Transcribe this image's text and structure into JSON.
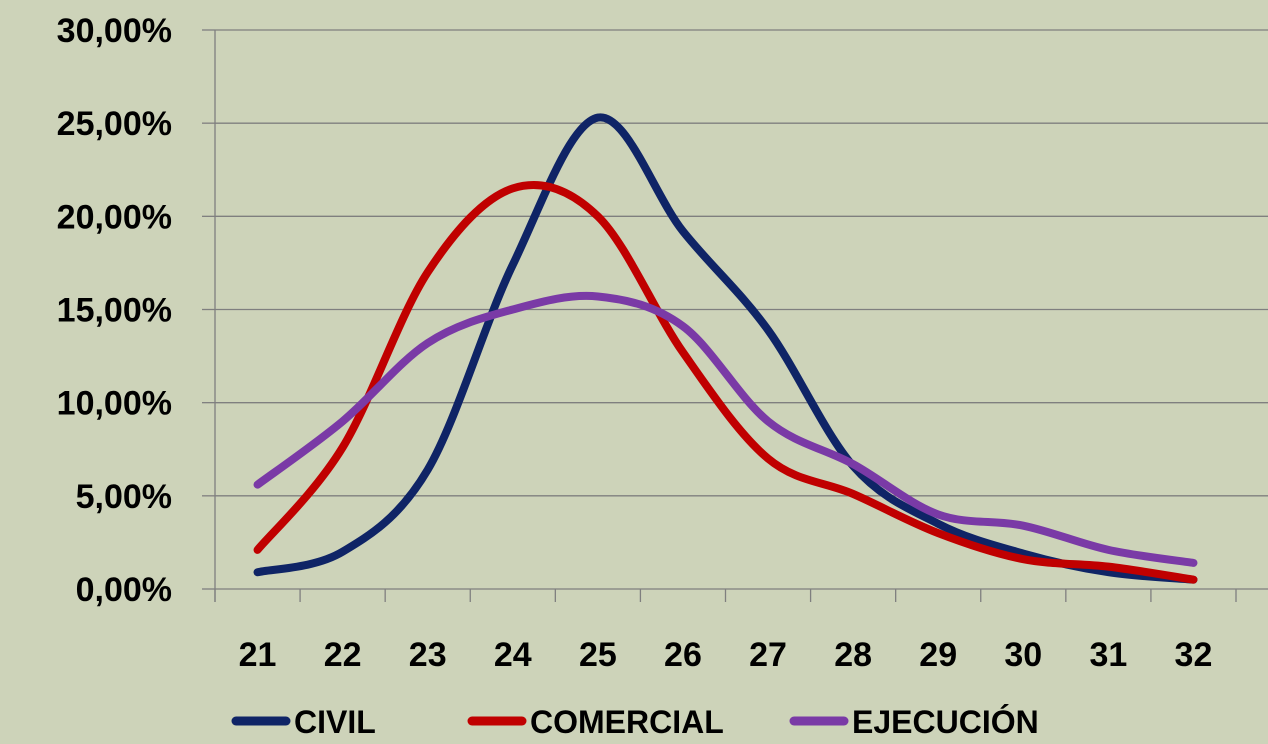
{
  "chart_data": {
    "type": "line",
    "title": "",
    "xlabel": "",
    "ylabel": "",
    "x": [
      21,
      22,
      23,
      24,
      25,
      26,
      27,
      28,
      29,
      30,
      31,
      32
    ],
    "ylim": [
      0,
      30
    ],
    "yticks": [
      0,
      5,
      10,
      15,
      20,
      25,
      30
    ],
    "ytick_labels": [
      "0,00%",
      "5,00%",
      "10,00%",
      "15,00%",
      "20,00%",
      "25,00%",
      "30,00%"
    ],
    "grid": "horizontal",
    "smooth": true,
    "legend_position": "bottom",
    "series": [
      {
        "name": "CIVIL",
        "color": "#0f2466",
        "values": [
          0.9,
          2.0,
          6.4,
          17.4,
          25.3,
          19.2,
          13.9,
          6.6,
          3.5,
          1.9,
          0.9,
          0.5
        ]
      },
      {
        "name": "COMERCIAL",
        "color": "#c00000",
        "values": [
          2.1,
          7.6,
          17.0,
          21.5,
          20.0,
          12.7,
          7.0,
          5.1,
          3.0,
          1.6,
          1.2,
          0.5
        ]
      },
      {
        "name": "EJECUCIÓN",
        "color": "#7a3aa6",
        "values": [
          5.6,
          9.0,
          13.2,
          15.0,
          15.7,
          14.1,
          9.0,
          6.7,
          4.0,
          3.4,
          2.1,
          1.4
        ]
      }
    ]
  }
}
